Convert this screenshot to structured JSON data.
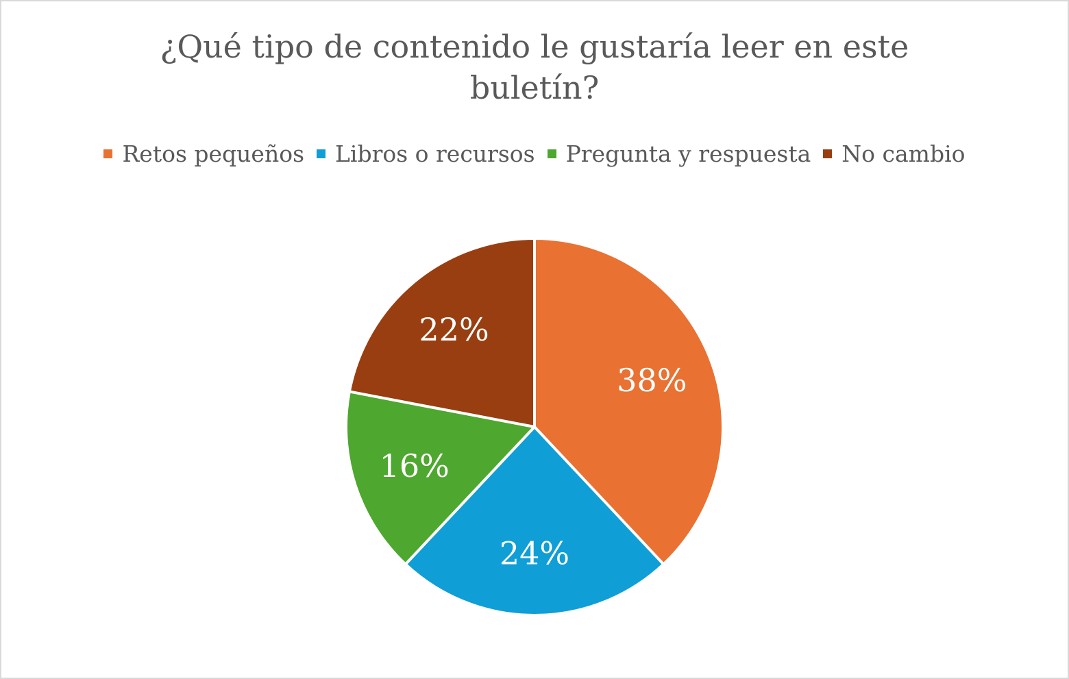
{
  "chart_data": {
    "type": "pie",
    "title": "¿Qué tipo de contenido le gustaría leer en este buletín?",
    "title_lines": [
      "¿Qué tipo de contenido le gustaría leer en este",
      "buletín?"
    ],
    "categories": [
      "Retos pequeños",
      "Libros o recursos",
      "Pregunta y respuesta",
      "No cambio"
    ],
    "values": [
      38,
      24,
      16,
      22
    ],
    "data_labels": [
      "38%",
      "24%",
      "16%",
      "22%"
    ],
    "colors": [
      "#E97132",
      "#0F9ED5",
      "#4EA72E",
      "#993E10"
    ],
    "legend_position": "top",
    "start_angle": "12 o'clock, clockwise"
  }
}
